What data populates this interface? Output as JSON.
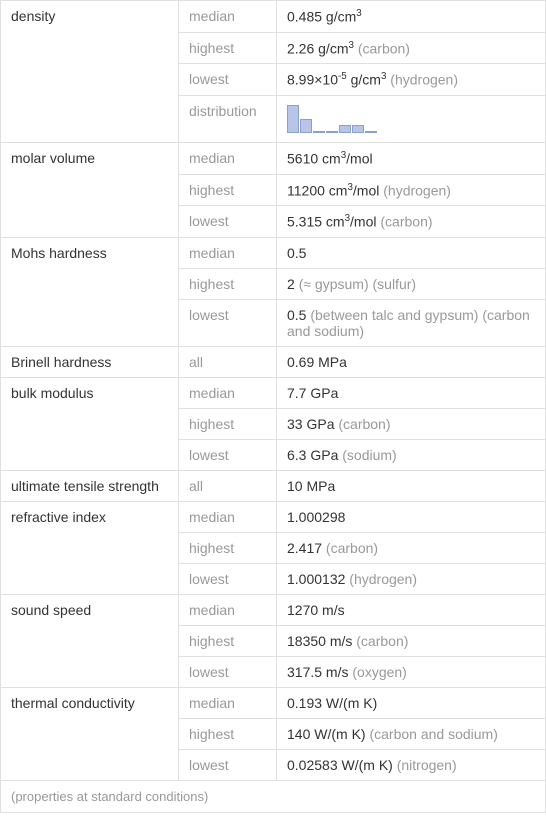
{
  "properties": [
    {
      "name": "density",
      "rows": [
        {
          "stat": "median",
          "value": "0.485 g/cm",
          "sup": "3",
          "qualifier": ""
        },
        {
          "stat": "highest",
          "value": "2.26 g/cm",
          "sup": "3",
          "qualifier": " (carbon)"
        },
        {
          "stat": "lowest",
          "value": "8.99×10",
          "sup1": "-5",
          "mid": " g/cm",
          "sup2": "3",
          "qualifier": " (hydrogen)"
        },
        {
          "stat": "distribution",
          "chart": true
        }
      ]
    },
    {
      "name": "molar volume",
      "rows": [
        {
          "stat": "median",
          "value": "5610 cm",
          "sup": "3",
          "post": "/mol",
          "qualifier": ""
        },
        {
          "stat": "highest",
          "value": "11200 cm",
          "sup": "3",
          "post": "/mol",
          "qualifier": " (hydrogen)"
        },
        {
          "stat": "lowest",
          "value": "5.315 cm",
          "sup": "3",
          "post": "/mol",
          "qualifier": " (carbon)"
        }
      ]
    },
    {
      "name": "Mohs hardness",
      "rows": [
        {
          "stat": "median",
          "value": "0.5",
          "qualifier": ""
        },
        {
          "stat": "highest",
          "value": "2 ",
          "qualifier": "(≈ gypsum) (sulfur)"
        },
        {
          "stat": "lowest",
          "value": "0.5 ",
          "qualifier": "(between talc and gypsum) (carbon and sodium)"
        }
      ]
    },
    {
      "name": "Brinell hardness",
      "rows": [
        {
          "stat": "all",
          "value": "0.69 MPa",
          "qualifier": ""
        }
      ]
    },
    {
      "name": "bulk modulus",
      "rows": [
        {
          "stat": "median",
          "value": "7.7 GPa",
          "qualifier": ""
        },
        {
          "stat": "highest",
          "value": "33 GPa",
          "qualifier": " (carbon)"
        },
        {
          "stat": "lowest",
          "value": "6.3 GPa",
          "qualifier": " (sodium)"
        }
      ]
    },
    {
      "name": "ultimate tensile strength",
      "rows": [
        {
          "stat": "all",
          "value": "10 MPa",
          "qualifier": ""
        }
      ]
    },
    {
      "name": "refractive index",
      "rows": [
        {
          "stat": "median",
          "value": "1.000298",
          "qualifier": ""
        },
        {
          "stat": "highest",
          "value": "2.417",
          "qualifier": " (carbon)"
        },
        {
          "stat": "lowest",
          "value": "1.000132",
          "qualifier": " (hydrogen)"
        }
      ]
    },
    {
      "name": "sound speed",
      "rows": [
        {
          "stat": "median",
          "value": "1270 m/s",
          "qualifier": ""
        },
        {
          "stat": "highest",
          "value": "18350 m/s",
          "qualifier": " (carbon)"
        },
        {
          "stat": "lowest",
          "value": "317.5 m/s",
          "qualifier": " (oxygen)"
        }
      ]
    },
    {
      "name": "thermal conductivity",
      "rows": [
        {
          "stat": "median",
          "value": "0.193 W/(m K)",
          "qualifier": ""
        },
        {
          "stat": "highest",
          "value": "140 W/(m K)",
          "qualifier": " (carbon and sodium)"
        },
        {
          "stat": "lowest",
          "value": "0.02583 W/(m K)",
          "qualifier": " (nitrogen)"
        }
      ]
    }
  ],
  "chart": {
    "bars": [
      28,
      14,
      2,
      2,
      8,
      8,
      2
    ],
    "bar_color": "#b8c4e8",
    "bar_border": "#8a9fd4"
  },
  "footnote": "(properties at standard conditions)"
}
